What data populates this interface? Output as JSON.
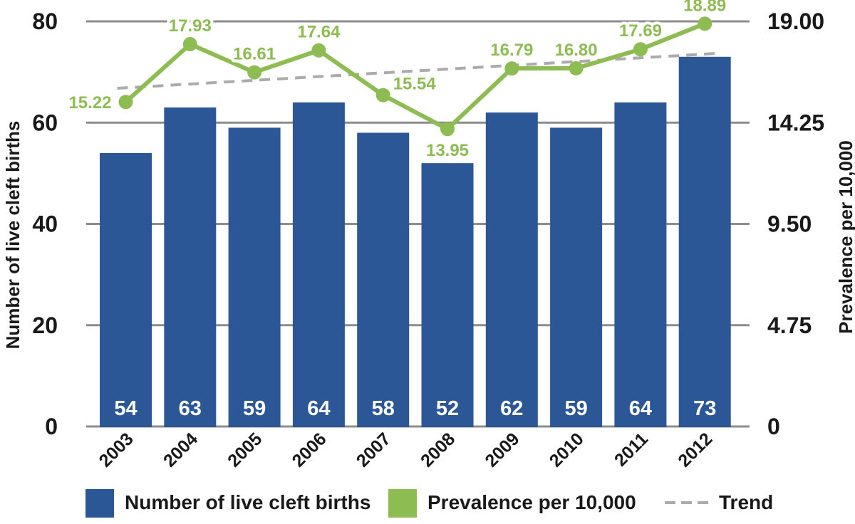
{
  "chart_data": {
    "type": "bar",
    "title": "",
    "categories": [
      "2003",
      "2004",
      "2005",
      "2006",
      "2007",
      "2008",
      "2009",
      "2010",
      "2011",
      "2012"
    ],
    "series": [
      {
        "name": "Number of live cleft births",
        "render": "bar",
        "axis": "left",
        "values": [
          54,
          63,
          59,
          64,
          58,
          52,
          62,
          59,
          64,
          73
        ],
        "labels": [
          "54",
          "63",
          "59",
          "64",
          "58",
          "52",
          "62",
          "59",
          "64",
          "73"
        ]
      },
      {
        "name": "Prevalence per 10,000",
        "render": "line",
        "axis": "right",
        "values": [
          15.22,
          17.93,
          16.61,
          17.64,
          15.54,
          13.95,
          16.79,
          16.8,
          17.69,
          18.89
        ],
        "labels": [
          "15.22",
          "17.93",
          "16.61",
          "17.64",
          "15.54",
          "13.95",
          "16.79",
          "16.80",
          "17.69",
          "18.89"
        ],
        "label_pos": [
          "left",
          "above",
          "above",
          "above",
          "above-right",
          "below",
          "above",
          "above",
          "above",
          "above"
        ]
      },
      {
        "name": "Trend",
        "render": "trend",
        "axis": "right",
        "endpoints": [
          15.86,
          17.5
        ]
      }
    ],
    "left_axis": {
      "label": "Number of live cleft births",
      "ticks": [
        80,
        60,
        40,
        20,
        0
      ],
      "tick_labels": [
        "80",
        "60",
        "40",
        "20",
        "0"
      ],
      "range": [
        0,
        80
      ]
    },
    "right_axis": {
      "label": "Prevalence per 10,000",
      "ticks": [
        19,
        14.25,
        9.5,
        4.75,
        0
      ],
      "tick_labels": [
        "19.00",
        "14.25",
        "9.50",
        "4.75",
        "0"
      ],
      "range": [
        0,
        19
      ]
    },
    "grid": true,
    "legend_position": "bottom"
  },
  "legend": {
    "items": [
      {
        "label": "Number of live cleft births",
        "swatch": "bar"
      },
      {
        "label": "Prevalence per 10,000",
        "swatch": "line"
      },
      {
        "label": "Trend",
        "swatch": "trend"
      }
    ]
  },
  "colors": {
    "bar": "#2B5796",
    "line": "#8CBC52",
    "grid": "#8C8C8C",
    "trend": "#ABABAB",
    "text": "#191919",
    "bar_label": "#FFFFFF",
    "background": "#FFFFFF"
  }
}
